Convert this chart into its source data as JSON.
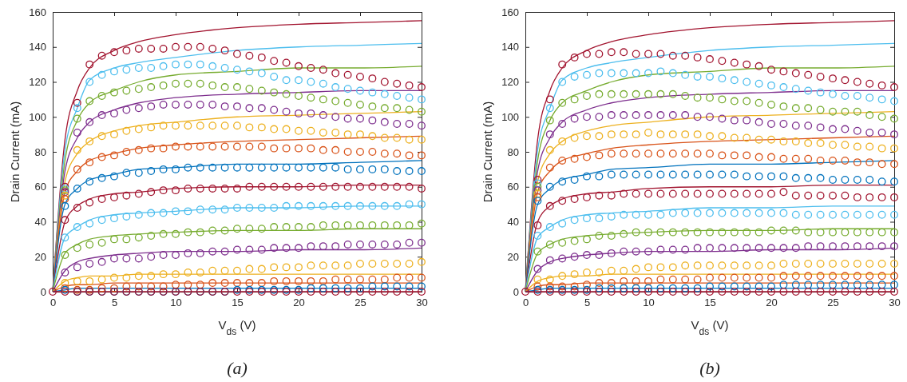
{
  "chart_data": [
    {
      "type": "scatter",
      "xlabel": "V$_{ds}$ (V)",
      "ylabel": "Drain Current (mA)",
      "annotations": [
        "(a)"
      ],
      "xlim": [
        0,
        30
      ],
      "xticks": [
        0,
        5,
        10,
        15,
        20,
        25,
        30
      ],
      "ylim": [
        0,
        160
      ],
      "yticks": [
        0,
        20,
        40,
        60,
        80,
        100,
        120,
        140,
        160
      ],
      "x": [
        0,
        1,
        2,
        3,
        4,
        5,
        6,
        7,
        8,
        9,
        10,
        11,
        12,
        13,
        14,
        15,
        16,
        17,
        18,
        19,
        20,
        21,
        22,
        23,
        24,
        25,
        26,
        27,
        28,
        29,
        30
      ],
      "series": [
        {
          "type": "line",
          "color": "#a2142f",
          "x": [
            0,
            1,
            2,
            3,
            5,
            7,
            10,
            15,
            20,
            25,
            30
          ],
          "values": [
            0,
            87,
            115,
            128,
            138,
            143,
            147,
            151,
            153,
            154,
            155
          ]
        },
        {
          "type": "line",
          "color": "#4dbeee",
          "x": [
            0,
            1,
            2,
            3,
            5,
            7,
            10,
            15,
            20,
            25,
            30
          ],
          "values": [
            0,
            81,
            105,
            121,
            128,
            131,
            134,
            138,
            140,
            141,
            142
          ]
        },
        {
          "type": "line",
          "color": "#77ac30",
          "x": [
            0,
            1,
            2,
            3,
            5,
            7,
            10,
            15,
            20,
            25,
            30
          ],
          "values": [
            0,
            75,
            98,
            108,
            115,
            120,
            124,
            126,
            128,
            128,
            129
          ]
        },
        {
          "type": "line",
          "color": "#7e2f8e",
          "x": [
            0,
            1,
            2,
            3,
            5,
            7,
            10,
            15,
            20,
            25,
            30
          ],
          "values": [
            0,
            69,
            88,
            97,
            104,
            108,
            111,
            113,
            114,
            115,
            115
          ]
        },
        {
          "type": "line",
          "color": "#edb120",
          "x": [
            0,
            1,
            2,
            3,
            5,
            7,
            10,
            15,
            20,
            25,
            30
          ],
          "values": [
            0,
            63,
            79,
            86,
            92,
            95,
            97,
            100,
            101,
            102,
            103
          ]
        },
        {
          "type": "line",
          "color": "#d95319",
          "x": [
            0,
            1,
            2,
            3,
            5,
            7,
            10,
            15,
            20,
            25,
            30
          ],
          "values": [
            0,
            57,
            69,
            75,
            79,
            82,
            84,
            86,
            87,
            88,
            89
          ]
        },
        {
          "type": "line",
          "color": "#0072bd",
          "x": [
            0,
            1,
            2,
            3,
            5,
            7,
            10,
            15,
            20,
            25,
            30
          ],
          "values": [
            0,
            50,
            59,
            64,
            67,
            70,
            71,
            73,
            73,
            74,
            75
          ]
        },
        {
          "type": "line",
          "color": "#a2142f",
          "x": [
            0,
            1,
            2,
            3,
            5,
            7,
            10,
            15,
            20,
            25,
            30
          ],
          "values": [
            0,
            40,
            49,
            53,
            56,
            57,
            59,
            60,
            60,
            61,
            61
          ]
        },
        {
          "type": "line",
          "color": "#4dbeee",
          "x": [
            0,
            1,
            2,
            3,
            5,
            7,
            10,
            15,
            20,
            25,
            30
          ],
          "values": [
            0,
            31,
            37,
            41,
            44,
            45,
            46,
            48,
            48,
            49,
            49
          ]
        },
        {
          "type": "line",
          "color": "#77ac30",
          "x": [
            0,
            1,
            2,
            3,
            5,
            7,
            10,
            15,
            20,
            25,
            30
          ],
          "values": [
            0,
            22,
            27,
            30,
            32,
            33,
            34,
            35,
            35,
            36,
            36
          ]
        },
        {
          "type": "line",
          "color": "#7e2f8e",
          "x": [
            0,
            1,
            2,
            3,
            5,
            7,
            10,
            15,
            20,
            25,
            30
          ],
          "values": [
            0,
            12,
            17,
            19,
            21,
            22,
            23,
            23,
            24,
            24,
            25
          ]
        },
        {
          "type": "line",
          "color": "#edb120",
          "x": [
            0,
            1,
            2,
            3,
            5,
            7,
            10,
            15,
            20,
            25,
            30
          ],
          "values": [
            0,
            6,
            8,
            9,
            9,
            10,
            10,
            10,
            10,
            10,
            10
          ]
        },
        {
          "type": "line",
          "color": "#d95319",
          "x": [
            0,
            1,
            2,
            3,
            5,
            7,
            10,
            15,
            20,
            25,
            30
          ],
          "values": [
            0,
            3,
            4,
            4,
            5,
            5,
            5,
            5,
            5,
            5,
            5
          ]
        },
        {
          "type": "line",
          "color": "#0072bd",
          "x": [
            0,
            1,
            2,
            3,
            5,
            7,
            10,
            15,
            20,
            25,
            30
          ],
          "values": [
            0,
            1,
            2,
            2,
            2,
            2,
            2,
            2,
            2,
            2,
            2
          ]
        },
        {
          "type": "line",
          "color": "#a2142f",
          "x": [
            0,
            1,
            2,
            3,
            5,
            7,
            10,
            15,
            20,
            25,
            30
          ],
          "values": [
            0,
            0,
            0,
            0,
            0,
            0,
            0,
            0,
            0,
            0,
            0
          ]
        },
        {
          "marker": "circle",
          "color": "#a2142f",
          "values": [
            null,
            60,
            108,
            130,
            135,
            137,
            138,
            139,
            139,
            139,
            140,
            140,
            140,
            139,
            138,
            136,
            135,
            134,
            132,
            131,
            129,
            128,
            127,
            125,
            124,
            123,
            122,
            120,
            119,
            118,
            117
          ]
        },
        {
          "marker": "circle",
          "color": "#4dbeee",
          "values": [
            null,
            59,
            105,
            120,
            124,
            126,
            127,
            128,
            128,
            129,
            130,
            130,
            130,
            129,
            128,
            127,
            126,
            125,
            123,
            121,
            121,
            120,
            119,
            117,
            116,
            115,
            114,
            113,
            112,
            111,
            110
          ]
        },
        {
          "marker": "circle",
          "color": "#77ac30",
          "values": [
            null,
            58,
            99,
            109,
            112,
            114,
            115,
            116,
            117,
            118,
            119,
            119,
            119,
            118,
            117,
            117,
            116,
            115,
            114,
            113,
            112,
            111,
            110,
            109,
            108,
            107,
            106,
            105,
            105,
            104,
            103
          ]
        },
        {
          "marker": "circle",
          "color": "#7e2f8e",
          "values": [
            null,
            57,
            91,
            97,
            101,
            102,
            104,
            105,
            106,
            107,
            107,
            107,
            107,
            107,
            106,
            106,
            105,
            105,
            104,
            103,
            102,
            102,
            101,
            100,
            99,
            99,
            98,
            97,
            96,
            96,
            95
          ]
        },
        {
          "marker": "circle",
          "color": "#edb120",
          "values": [
            null,
            55,
            81,
            86,
            89,
            90,
            92,
            93,
            94,
            95,
            95,
            95,
            95,
            95,
            95,
            95,
            94,
            94,
            93,
            93,
            92,
            92,
            91,
            91,
            90,
            90,
            89,
            88,
            88,
            87,
            87
          ]
        },
        {
          "marker": "circle",
          "color": "#d95319",
          "values": [
            null,
            53,
            70,
            74,
            77,
            78,
            80,
            81,
            82,
            82,
            83,
            83,
            83,
            83,
            83,
            83,
            83,
            83,
            82,
            82,
            82,
            82,
            81,
            81,
            80,
            80,
            80,
            79,
            79,
            78,
            78
          ]
        },
        {
          "marker": "circle",
          "color": "#0072bd",
          "values": [
            null,
            49,
            59,
            63,
            65,
            66,
            68,
            68,
            69,
            70,
            70,
            71,
            71,
            71,
            71,
            71,
            71,
            71,
            71,
            71,
            71,
            71,
            71,
            71,
            70,
            70,
            70,
            70,
            69,
            69,
            69
          ]
        },
        {
          "marker": "circle",
          "color": "#a2142f",
          "values": [
            null,
            41,
            48,
            51,
            53,
            54,
            55,
            56,
            57,
            58,
            58,
            59,
            59,
            59,
            59,
            59,
            60,
            60,
            60,
            60,
            60,
            60,
            60,
            60,
            60,
            60,
            60,
            60,
            60,
            60,
            59
          ]
        },
        {
          "marker": "circle",
          "color": "#4dbeee",
          "values": [
            null,
            31,
            37,
            39,
            41,
            42,
            43,
            44,
            45,
            45,
            46,
            46,
            47,
            47,
            47,
            48,
            48,
            48,
            48,
            49,
            49,
            49,
            49,
            49,
            49,
            49,
            49,
            49,
            49,
            50,
            50
          ]
        },
        {
          "marker": "circle",
          "color": "#77ac30",
          "values": [
            null,
            21,
            25,
            27,
            28,
            30,
            30,
            31,
            32,
            33,
            33,
            34,
            34,
            35,
            35,
            36,
            36,
            36,
            37,
            37,
            37,
            37,
            38,
            38,
            38,
            38,
            38,
            38,
            38,
            38,
            39
          ]
        },
        {
          "marker": "circle",
          "color": "#7e2f8e",
          "values": [
            null,
            11,
            14,
            16,
            17,
            19,
            19,
            19,
            20,
            21,
            21,
            22,
            22,
            23,
            23,
            24,
            24,
            24,
            25,
            25,
            25,
            26,
            26,
            26,
            27,
            27,
            27,
            27,
            27,
            28,
            28
          ]
        },
        {
          "marker": "circle",
          "color": "#edb120",
          "values": [
            null,
            5,
            6,
            6,
            7,
            8,
            8,
            9,
            9,
            10,
            10,
            11,
            11,
            12,
            12,
            12,
            13,
            13,
            14,
            14,
            14,
            15,
            15,
            15,
            15,
            16,
            16,
            16,
            16,
            16,
            17
          ]
        },
        {
          "marker": "circle",
          "color": "#d95319",
          "values": [
            null,
            2,
            1,
            1,
            2,
            2,
            3,
            3,
            3,
            3,
            4,
            4,
            4,
            5,
            5,
            5,
            5,
            5,
            6,
            6,
            6,
            6,
            6,
            7,
            7,
            7,
            7,
            7,
            8,
            8,
            8
          ]
        },
        {
          "marker": "circle",
          "color": "#0072bd",
          "values": [
            null,
            1,
            0,
            0,
            0,
            0,
            0,
            0,
            0,
            0,
            0,
            0,
            0,
            0,
            0,
            1,
            1,
            1,
            1,
            1,
            1,
            2,
            2,
            2,
            2,
            2,
            3,
            3,
            3,
            3,
            3
          ]
        },
        {
          "marker": "circle",
          "color": "#a2142f",
          "values": [
            0,
            0,
            0,
            0,
            0,
            0,
            0,
            0,
            0,
            0,
            0,
            0,
            0,
            0,
            0,
            0,
            0,
            0,
            0,
            0,
            0,
            0,
            0,
            0,
            0,
            0,
            0,
            0,
            0,
            0,
            0
          ]
        }
      ]
    },
    {
      "type": "scatter",
      "xlabel": "V$_{ds}$ (V)",
      "ylabel": "Drain Current (mA)",
      "annotations": [
        "(b)"
      ],
      "xlim": [
        0,
        30
      ],
      "xticks": [
        0,
        5,
        10,
        15,
        20,
        25,
        30
      ],
      "ylim": [
        0,
        160
      ],
      "yticks": [
        0,
        20,
        40,
        60,
        80,
        100,
        120,
        140,
        160
      ],
      "x": [
        0,
        1,
        2,
        3,
        4,
        5,
        6,
        7,
        8,
        9,
        10,
        11,
        12,
        13,
        14,
        15,
        16,
        17,
        18,
        19,
        20,
        21,
        22,
        23,
        24,
        25,
        26,
        27,
        28,
        29,
        30
      ],
      "series": [
        {
          "type": "line",
          "color": "#a2142f",
          "x": [
            0,
            1,
            2,
            3,
            5,
            7,
            10,
            15,
            20,
            25,
            30
          ],
          "values": [
            0,
            87,
            115,
            128,
            138,
            143,
            147,
            151,
            153,
            154,
            155
          ]
        },
        {
          "type": "line",
          "color": "#4dbeee",
          "x": [
            0,
            1,
            2,
            3,
            5,
            7,
            10,
            15,
            20,
            25,
            30
          ],
          "values": [
            0,
            81,
            105,
            121,
            128,
            131,
            134,
            138,
            140,
            141,
            142
          ]
        },
        {
          "type": "line",
          "color": "#77ac30",
          "x": [
            0,
            1,
            2,
            3,
            5,
            7,
            10,
            15,
            20,
            25,
            30
          ],
          "values": [
            0,
            75,
            98,
            108,
            115,
            120,
            124,
            126,
            128,
            128,
            129
          ]
        },
        {
          "type": "line",
          "color": "#7e2f8e",
          "x": [
            0,
            1,
            2,
            3,
            5,
            7,
            10,
            15,
            20,
            25,
            30
          ],
          "values": [
            0,
            69,
            88,
            97,
            104,
            108,
            111,
            113,
            114,
            115,
            115
          ]
        },
        {
          "type": "line",
          "color": "#edb120",
          "x": [
            0,
            1,
            2,
            3,
            5,
            7,
            10,
            15,
            20,
            25,
            30
          ],
          "values": [
            0,
            63,
            79,
            86,
            92,
            95,
            97,
            100,
            101,
            102,
            103
          ]
        },
        {
          "type": "line",
          "color": "#d95319",
          "x": [
            0,
            1,
            2,
            3,
            5,
            7,
            10,
            15,
            20,
            25,
            30
          ],
          "values": [
            0,
            57,
            69,
            75,
            79,
            82,
            84,
            86,
            87,
            88,
            89
          ]
        },
        {
          "type": "line",
          "color": "#0072bd",
          "x": [
            0,
            1,
            2,
            3,
            5,
            7,
            10,
            15,
            20,
            25,
            30
          ],
          "values": [
            0,
            50,
            59,
            64,
            67,
            70,
            71,
            73,
            73,
            74,
            75
          ]
        },
        {
          "type": "line",
          "color": "#a2142f",
          "x": [
            0,
            1,
            2,
            3,
            5,
            7,
            10,
            15,
            20,
            25,
            30
          ],
          "values": [
            0,
            40,
            49,
            53,
            56,
            57,
            59,
            60,
            60,
            61,
            61
          ]
        },
        {
          "type": "line",
          "color": "#4dbeee",
          "x": [
            0,
            1,
            2,
            3,
            5,
            7,
            10,
            15,
            20,
            25,
            30
          ],
          "values": [
            0,
            31,
            37,
            41,
            44,
            45,
            46,
            48,
            48,
            49,
            49
          ]
        },
        {
          "type": "line",
          "color": "#77ac30",
          "x": [
            0,
            1,
            2,
            3,
            5,
            7,
            10,
            15,
            20,
            25,
            30
          ],
          "values": [
            0,
            22,
            27,
            30,
            32,
            33,
            34,
            35,
            35,
            36,
            36
          ]
        },
        {
          "type": "line",
          "color": "#7e2f8e",
          "x": [
            0,
            1,
            2,
            3,
            5,
            7,
            10,
            15,
            20,
            25,
            30
          ],
          "values": [
            0,
            12,
            17,
            19,
            21,
            22,
            23,
            23,
            24,
            24,
            25
          ]
        },
        {
          "type": "line",
          "color": "#edb120",
          "x": [
            0,
            1,
            2,
            3,
            5,
            7,
            10,
            15,
            20,
            25,
            30
          ],
          "values": [
            0,
            6,
            8,
            9,
            9,
            10,
            10,
            10,
            10,
            10,
            10
          ]
        },
        {
          "type": "line",
          "color": "#d95319",
          "x": [
            0,
            1,
            2,
            3,
            5,
            7,
            10,
            15,
            20,
            25,
            30
          ],
          "values": [
            0,
            3,
            4,
            4,
            5,
            5,
            5,
            5,
            5,
            5,
            5
          ]
        },
        {
          "type": "line",
          "color": "#0072bd",
          "x": [
            0,
            1,
            2,
            3,
            5,
            7,
            10,
            15,
            20,
            25,
            30
          ],
          "values": [
            0,
            1,
            2,
            2,
            2,
            2,
            2,
            2,
            2,
            2,
            2
          ]
        },
        {
          "type": "line",
          "color": "#a2142f",
          "x": [
            0,
            1,
            2,
            3,
            5,
            7,
            10,
            15,
            20,
            25,
            30
          ],
          "values": [
            0,
            0,
            0,
            0,
            0,
            0,
            0,
            0,
            0,
            0,
            0
          ]
        },
        {
          "marker": "circle",
          "color": "#a2142f",
          "values": [
            null,
            64,
            110,
            130,
            134,
            136,
            136,
            137,
            137,
            136,
            136,
            136,
            135,
            135,
            134,
            133,
            132,
            131,
            130,
            129,
            127,
            126,
            125,
            124,
            123,
            122,
            121,
            120,
            119,
            118,
            117
          ]
        },
        {
          "marker": "circle",
          "color": "#4dbeee",
          "values": [
            null,
            62,
            105,
            120,
            123,
            124,
            125,
            125,
            125,
            125,
            125,
            126,
            125,
            124,
            123,
            123,
            122,
            121,
            120,
            119,
            118,
            117,
            116,
            115,
            114,
            113,
            112,
            112,
            111,
            110,
            109
          ]
        },
        {
          "marker": "circle",
          "color": "#77ac30",
          "values": [
            null,
            60,
            98,
            108,
            110,
            112,
            113,
            113,
            113,
            113,
            113,
            113,
            113,
            112,
            111,
            111,
            110,
            109,
            109,
            108,
            107,
            106,
            105,
            105,
            104,
            103,
            103,
            103,
            101,
            100,
            99
          ]
        },
        {
          "marker": "circle",
          "color": "#7e2f8e",
          "values": [
            null,
            58,
            90,
            96,
            99,
            100,
            100,
            101,
            101,
            101,
            101,
            101,
            101,
            101,
            100,
            100,
            99,
            98,
            98,
            97,
            96,
            96,
            95,
            95,
            94,
            93,
            93,
            92,
            91,
            91,
            90
          ]
        },
        {
          "marker": "circle",
          "color": "#edb120",
          "values": [
            null,
            56,
            81,
            86,
            88,
            89,
            89,
            90,
            90,
            90,
            91,
            90,
            90,
            90,
            90,
            89,
            89,
            88,
            88,
            87,
            87,
            86,
            86,
            85,
            85,
            84,
            84,
            83,
            83,
            82,
            82
          ]
        },
        {
          "marker": "circle",
          "color": "#d95319",
          "values": [
            null,
            54,
            71,
            75,
            76,
            77,
            78,
            79,
            79,
            79,
            79,
            79,
            79,
            79,
            79,
            79,
            78,
            78,
            78,
            77,
            77,
            76,
            76,
            76,
            75,
            75,
            75,
            74,
            74,
            73,
            73
          ]
        },
        {
          "marker": "circle",
          "color": "#0072bd",
          "values": [
            null,
            52,
            60,
            63,
            64,
            66,
            66,
            67,
            67,
            67,
            67,
            67,
            67,
            67,
            67,
            67,
            67,
            67,
            66,
            66,
            66,
            66,
            65,
            65,
            65,
            64,
            64,
            64,
            64,
            63,
            63
          ]
        },
        {
          "marker": "circle",
          "color": "#a2142f",
          "values": [
            null,
            38,
            49,
            52,
            53,
            54,
            55,
            55,
            56,
            56,
            56,
            56,
            56,
            56,
            56,
            56,
            56,
            56,
            56,
            56,
            56,
            57,
            55,
            55,
            55,
            55,
            55,
            54,
            54,
            54,
            54
          ]
        },
        {
          "marker": "circle",
          "color": "#4dbeee",
          "values": [
            null,
            32,
            37,
            39,
            41,
            42,
            42,
            43,
            44,
            44,
            44,
            44,
            45,
            45,
            45,
            45,
            45,
            45,
            45,
            45,
            45,
            45,
            44,
            44,
            44,
            44,
            44,
            44,
            44,
            44,
            44
          ]
        },
        {
          "marker": "circle",
          "color": "#77ac30",
          "values": [
            null,
            23,
            27,
            28,
            29,
            30,
            32,
            32,
            33,
            34,
            34,
            34,
            34,
            34,
            34,
            34,
            34,
            34,
            34,
            34,
            35,
            35,
            35,
            34,
            34,
            34,
            34,
            34,
            34,
            34,
            34
          ]
        },
        {
          "marker": "circle",
          "color": "#7e2f8e",
          "values": [
            null,
            13,
            18,
            19,
            20,
            21,
            21,
            22,
            23,
            23,
            23,
            24,
            24,
            24,
            25,
            25,
            25,
            25,
            25,
            25,
            25,
            25,
            25,
            26,
            26,
            26,
            26,
            26,
            26,
            26,
            26
          ]
        },
        {
          "marker": "circle",
          "color": "#edb120",
          "values": [
            null,
            7,
            7,
            9,
            10,
            11,
            11,
            12,
            12,
            13,
            14,
            14,
            14,
            15,
            15,
            15,
            15,
            15,
            15,
            15,
            15,
            16,
            16,
            16,
            16,
            16,
            16,
            16,
            16,
            16,
            16
          ]
        },
        {
          "marker": "circle",
          "color": "#d95319",
          "values": [
            null,
            3,
            3,
            3,
            3,
            4,
            5,
            5,
            6,
            6,
            6,
            7,
            7,
            7,
            7,
            8,
            8,
            8,
            8,
            8,
            8,
            9,
            9,
            9,
            9,
            9,
            9,
            9,
            9,
            9,
            9
          ]
        },
        {
          "marker": "circle",
          "color": "#0072bd",
          "values": [
            null,
            1,
            1,
            1,
            1,
            1,
            2,
            2,
            2,
            2,
            2,
            2,
            2,
            2,
            2,
            3,
            3,
            3,
            3,
            3,
            3,
            4,
            4,
            4,
            4,
            4,
            4,
            4,
            4,
            4,
            4
          ]
        },
        {
          "marker": "circle",
          "color": "#a2142f",
          "values": [
            0,
            0,
            0,
            0,
            0,
            0,
            0,
            0,
            0,
            0,
            0,
            0,
            0,
            0,
            0,
            0,
            0,
            0,
            0,
            0,
            0,
            0,
            0,
            0,
            0,
            0,
            0,
            0,
            0,
            0,
            0
          ]
        }
      ]
    }
  ]
}
